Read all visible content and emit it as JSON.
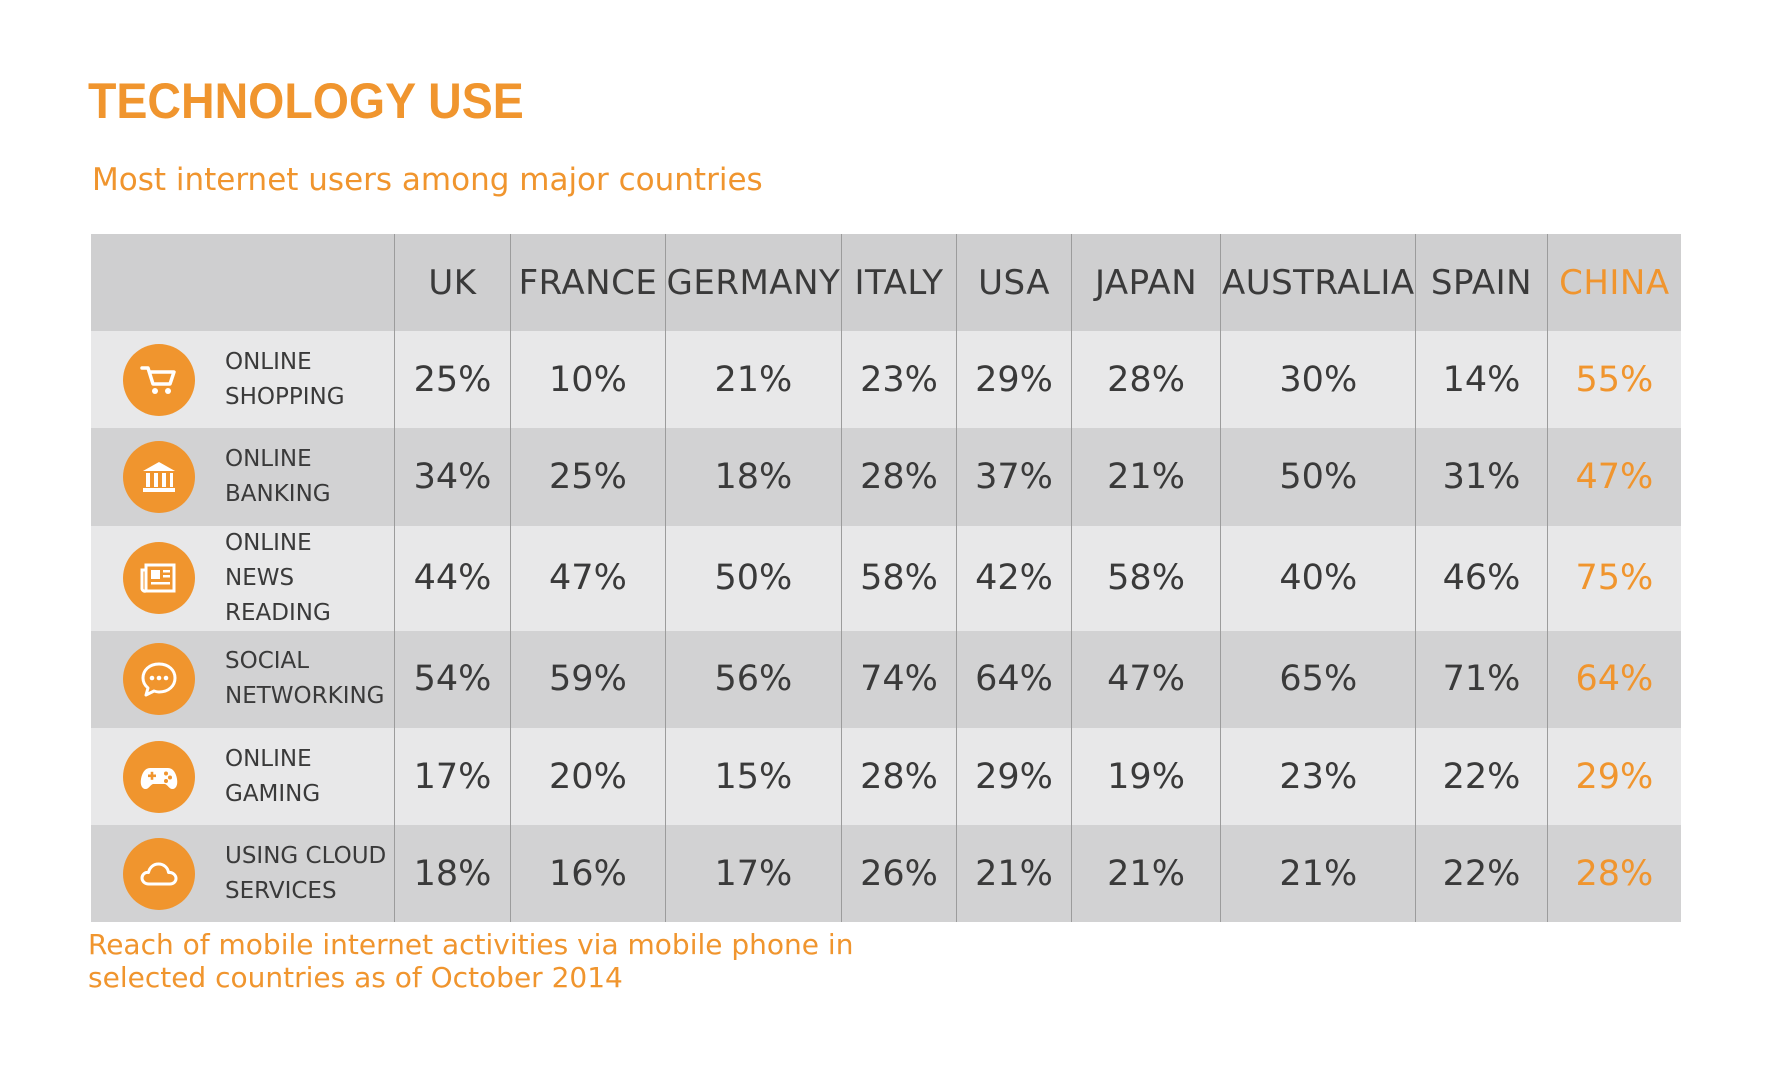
{
  "title": "TECHNOLOGY USE",
  "subtitle": "Most internet users among major countries",
  "footnote": {
    "line1": "Reach of mobile internet activities via mobile phone in",
    "line2": "selected countries as of October 2014"
  },
  "colors": {
    "accent": "#f0952e",
    "header_bg": "#cfcfd0",
    "row_light": "#e8e8e9",
    "row_dark": "#d2d2d3",
    "text": "#3a3a3a"
  },
  "chart_data": {
    "type": "table",
    "title": "TECHNOLOGY USE",
    "subtitle": "Most internet users among major countries",
    "highlighted_column": "CHINA",
    "columns": [
      "UK",
      "FRANCE",
      "GERMANY",
      "ITALY",
      "USA",
      "JAPAN",
      "AUSTRALIA",
      "SPAIN",
      "CHINA"
    ],
    "rows": [
      {
        "label_lines": [
          "ONLINE",
          "SHOPPING"
        ],
        "icon": "shopping-cart-icon",
        "values": [
          "25%",
          "10%",
          "21%",
          "23%",
          "29%",
          "28%",
          "30%",
          "14%",
          "55%"
        ]
      },
      {
        "label_lines": [
          "ONLINE",
          "BANKING"
        ],
        "icon": "bank-icon",
        "values": [
          "34%",
          "25%",
          "18%",
          "28%",
          "37%",
          "21%",
          "50%",
          "31%",
          "47%"
        ]
      },
      {
        "label_lines": [
          "ONLINE",
          "NEWS READING"
        ],
        "icon": "newspaper-icon",
        "values": [
          "44%",
          "47%",
          "50%",
          "58%",
          "42%",
          "58%",
          "40%",
          "46%",
          "75%"
        ]
      },
      {
        "label_lines": [
          "SOCIAL",
          "NETWORKING"
        ],
        "icon": "chat-bubble-icon",
        "values": [
          "54%",
          "59%",
          "56%",
          "74%",
          "64%",
          "47%",
          "65%",
          "71%",
          "64%"
        ]
      },
      {
        "label_lines": [
          "ONLINE",
          "GAMING"
        ],
        "icon": "gamepad-icon",
        "values": [
          "17%",
          "20%",
          "15%",
          "28%",
          "29%",
          "19%",
          "23%",
          "22%",
          "29%"
        ]
      },
      {
        "label_lines": [
          "USING CLOUD",
          "SERVICES"
        ],
        "icon": "cloud-icon",
        "values": [
          "18%",
          "16%",
          "17%",
          "26%",
          "21%",
          "21%",
          "21%",
          "22%",
          "28%"
        ]
      }
    ]
  }
}
